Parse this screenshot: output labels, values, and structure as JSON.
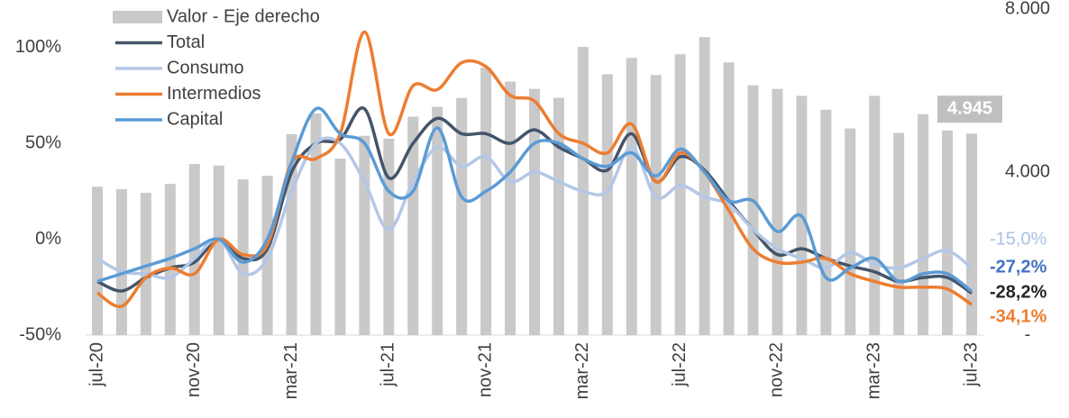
{
  "chart_data": {
    "type": "bar-line",
    "categories": [
      "jul-20",
      null,
      null,
      null,
      "nov-20",
      null,
      null,
      null,
      "mar-21",
      null,
      null,
      null,
      "jul-21",
      null,
      null,
      null,
      "nov-21",
      null,
      null,
      null,
      "mar-22",
      null,
      null,
      null,
      "jul-22",
      null,
      null,
      null,
      "nov-22",
      null,
      null,
      null,
      "mar-23",
      null,
      null,
      null,
      "jul-23"
    ],
    "ylim": [
      -50,
      120
    ],
    "yticks": [
      {
        "value": -50,
        "label": "-50%"
      },
      {
        "value": 0,
        "label": "0%"
      },
      {
        "value": 50,
        "label": "50%"
      },
      {
        "value": 100,
        "label": "100%"
      }
    ],
    "y2lim": [
      0,
      8000
    ],
    "y2ticks": [
      {
        "value": 0,
        "label": "-"
      },
      {
        "value": 4000,
        "label": "4.000"
      },
      {
        "value": 8000,
        "label": "8.000"
      }
    ],
    "legend": "top-left",
    "series": [
      {
        "name": "Valor - Eje derecho",
        "kind": "bar",
        "axis": "y2",
        "color": "#c9c9c9",
        "values": [
          3640,
          3580,
          3490,
          3710,
          4200,
          4160,
          3820,
          3910,
          4930,
          5440,
          4330,
          4890,
          4820,
          5360,
          5600,
          5820,
          6560,
          6220,
          6040,
          5820,
          7070,
          6400,
          6800,
          6380,
          6890,
          7310,
          6690,
          6130,
          6040,
          5870,
          5530,
          5070,
          5870,
          4960,
          5420,
          5020,
          4945
        ],
        "value_labels": [
          null,
          null,
          null,
          null,
          null,
          null,
          null,
          null,
          null,
          null,
          null,
          null,
          null,
          null,
          null,
          null,
          null,
          null,
          null,
          null,
          null,
          null,
          null,
          null,
          null,
          null,
          null,
          null,
          null,
          null,
          null,
          null,
          null,
          null,
          null,
          null,
          "4.945"
        ]
      },
      {
        "name": "Total",
        "kind": "line",
        "color": "#44546a",
        "values": [
          -22,
          -27,
          -20,
          -15,
          -12,
          0,
          -10,
          -5,
          35,
          50,
          52,
          68,
          32,
          50,
          63,
          55,
          55,
          50,
          57,
          48,
          42,
          36,
          55,
          30,
          43,
          36,
          20,
          5,
          -8,
          -5,
          -10,
          -14,
          -17,
          -22,
          -20,
          -20,
          -28.2
        ],
        "value_labels": [
          null,
          null,
          null,
          null,
          null,
          null,
          null,
          null,
          null,
          null,
          null,
          null,
          null,
          null,
          null,
          null,
          null,
          null,
          null,
          null,
          null,
          null,
          null,
          null,
          null,
          null,
          null,
          null,
          null,
          null,
          null,
          null,
          null,
          null,
          null,
          null,
          "-28,2%"
        ]
      },
      {
        "name": "Consumo",
        "kind": "line",
        "color": "#b4c7e7",
        "values": [
          -10,
          -17,
          -18,
          -20,
          -10,
          0,
          -18,
          -10,
          25,
          50,
          50,
          30,
          5,
          30,
          48,
          38,
          43,
          30,
          35,
          30,
          25,
          25,
          48,
          22,
          28,
          22,
          18,
          5,
          -5,
          -10,
          -15,
          -7,
          -13,
          -15,
          -10,
          -6,
          -15.0
        ],
        "value_labels": [
          null,
          null,
          null,
          null,
          null,
          null,
          null,
          null,
          null,
          null,
          null,
          null,
          null,
          null,
          null,
          null,
          null,
          null,
          null,
          null,
          null,
          null,
          null,
          null,
          null,
          null,
          null,
          null,
          null,
          null,
          null,
          null,
          null,
          null,
          null,
          null,
          "-15,0%"
        ]
      },
      {
        "name": "Intermedios",
        "kind": "line",
        "color": "#ed7d31",
        "values": [
          -28,
          -35,
          -20,
          -15,
          -18,
          0,
          -8,
          -3,
          40,
          42,
          55,
          108,
          55,
          80,
          78,
          92,
          90,
          75,
          72,
          55,
          50,
          45,
          60,
          30,
          45,
          35,
          15,
          -5,
          -12,
          -12,
          -10,
          -18,
          -22,
          -25,
          -25,
          -26,
          -34.1
        ],
        "value_labels": [
          null,
          null,
          null,
          null,
          null,
          null,
          null,
          null,
          null,
          null,
          null,
          null,
          null,
          null,
          null,
          null,
          null,
          null,
          null,
          null,
          null,
          null,
          null,
          null,
          null,
          null,
          null,
          null,
          null,
          null,
          null,
          null,
          null,
          null,
          null,
          null,
          "-34,1%"
        ]
      },
      {
        "name": "Capital",
        "kind": "line",
        "color": "#5b9bd5",
        "values": [
          -22,
          -18,
          -14,
          -10,
          -5,
          0,
          -12,
          0,
          40,
          68,
          55,
          50,
          25,
          25,
          58,
          22,
          25,
          35,
          50,
          50,
          42,
          38,
          45,
          33,
          47,
          35,
          20,
          20,
          4,
          12,
          -20,
          -15,
          -10,
          -22,
          -18,
          -18,
          -27.2
        ],
        "value_labels": [
          null,
          null,
          null,
          null,
          null,
          null,
          null,
          null,
          null,
          null,
          null,
          null,
          null,
          null,
          null,
          null,
          null,
          null,
          null,
          null,
          null,
          null,
          null,
          null,
          null,
          null,
          null,
          null,
          null,
          null,
          null,
          null,
          null,
          null,
          null,
          null,
          "-27,2%"
        ]
      }
    ]
  }
}
